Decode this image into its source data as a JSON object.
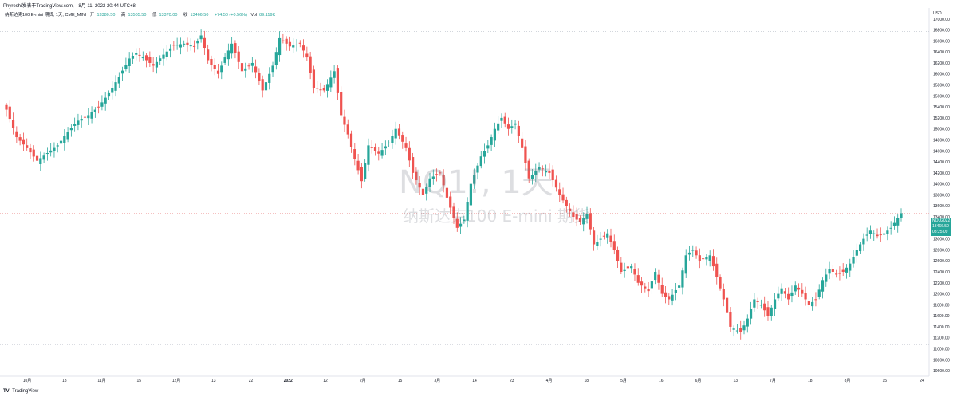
{
  "header": {
    "published_by": "Phyreshi发表于TradingView.com,",
    "date": "8月 11, 2022 20:44 UTC+8"
  },
  "legend": {
    "symbol": "纳斯达克100 E-mini 期货, 1天, CME_MINI",
    "open_label": "开",
    "open": "13380.50",
    "high_label": "高",
    "high": "13505.50",
    "low_label": "低",
    "low": "13370.00",
    "close_label": "收",
    "close": "13466.50",
    "change": "+74.50 (+0.56%)",
    "volume_label": "Vol",
    "volume": "89.119K"
  },
  "watermark": {
    "line1": "NQ1!, 1天",
    "line2": "纳斯达克100 E-mini 期货"
  },
  "price_tag": {
    "symbol": "NQU2022",
    "price": "13466.50",
    "countdown": "08:25:09",
    "color": "#26a69a"
  },
  "footer": {
    "logo": "TV",
    "brand": "TradingView"
  },
  "colors": {
    "up": "#26a69a",
    "down": "#ef5350"
  },
  "chart_data": {
    "type": "candlestick",
    "currency": "USD",
    "ylim": [
      10500,
      17200
    ],
    "y_ticks": [
      10600,
      10800,
      11000,
      11200,
      11400,
      11600,
      11800,
      12000,
      12200,
      12400,
      12600,
      12800,
      13000,
      13200,
      13400,
      13600,
      13800,
      14000,
      14200,
      14400,
      14600,
      14800,
      15000,
      15200,
      15400,
      15600,
      15800,
      16000,
      16200,
      16400,
      16600,
      16800,
      17000
    ],
    "x_ticks": [
      "10月",
      "18",
      "11月",
      "15",
      "12月",
      "13",
      "22",
      "2022",
      "12",
      "2月",
      "15",
      "3月",
      "14",
      "23",
      "4月",
      "18",
      "5月",
      "16",
      "6月",
      "13",
      "7月",
      "18",
      "8月",
      "15",
      "24"
    ],
    "reference_lines": [
      16770,
      13466.5,
      11070
    ],
    "checkpoints": [
      [
        0,
        15350
      ],
      [
        3,
        14850
      ],
      [
        6,
        14650
      ],
      [
        9,
        14420
      ],
      [
        12,
        14560
      ],
      [
        15,
        14700
      ],
      [
        18,
        14950
      ],
      [
        21,
        15150
      ],
      [
        24,
        15250
      ],
      [
        27,
        15400
      ],
      [
        30,
        15650
      ],
      [
        33,
        15950
      ],
      [
        36,
        16280
      ],
      [
        38,
        16380
      ],
      [
        40,
        16300
      ],
      [
        43,
        16150
      ],
      [
        46,
        16350
      ],
      [
        49,
        16520
      ],
      [
        52,
        16550
      ],
      [
        55,
        16500
      ],
      [
        57,
        16700
      ],
      [
        59,
        16250
      ],
      [
        62,
        16000
      ],
      [
        64,
        16300
      ],
      [
        66,
        16550
      ],
      [
        69,
        16050
      ],
      [
        72,
        16200
      ],
      [
        75,
        15700
      ],
      [
        78,
        16150
      ],
      [
        80,
        16650
      ],
      [
        83,
        16500
      ],
      [
        86,
        16550
      ],
      [
        88,
        16300
      ],
      [
        90,
        15750
      ],
      [
        93,
        15700
      ],
      [
        96,
        16050
      ],
      [
        98,
        15250
      ],
      [
        100,
        14900
      ],
      [
        102,
        14450
      ],
      [
        104,
        14050
      ],
      [
        106,
        14700
      ],
      [
        109,
        14550
      ],
      [
        112,
        14750
      ],
      [
        114,
        15000
      ],
      [
        117,
        14650
      ],
      [
        119,
        14200
      ],
      [
        122,
        13800
      ],
      [
        124,
        14100
      ],
      [
        127,
        14200
      ],
      [
        129,
        13750
      ],
      [
        132,
        13200
      ],
      [
        134,
        13350
      ],
      [
        136,
        14000
      ],
      [
        139,
        14500
      ],
      [
        141,
        14700
      ],
      [
        143,
        15000
      ],
      [
        145,
        15200
      ],
      [
        147,
        15000
      ],
      [
        149,
        15100
      ],
      [
        151,
        14650
      ],
      [
        153,
        14100
      ],
      [
        156,
        14300
      ],
      [
        159,
        14200
      ],
      [
        162,
        13800
      ],
      [
        164,
        13600
      ],
      [
        166,
        13400
      ],
      [
        168,
        13300
      ],
      [
        170,
        13450
      ],
      [
        172,
        12900
      ],
      [
        174,
        13000
      ],
      [
        176,
        13100
      ],
      [
        178,
        12800
      ],
      [
        180,
        12400
      ],
      [
        183,
        12500
      ],
      [
        185,
        12200
      ],
      [
        188,
        12050
      ],
      [
        190,
        12400
      ],
      [
        192,
        12000
      ],
      [
        194,
        11900
      ],
      [
        197,
        12150
      ],
      [
        199,
        12700
      ],
      [
        201,
        12800
      ],
      [
        203,
        12600
      ],
      [
        206,
        12700
      ],
      [
        208,
        12300
      ],
      [
        210,
        11900
      ],
      [
        212,
        11400
      ],
      [
        215,
        11300
      ],
      [
        217,
        11550
      ],
      [
        219,
        11900
      ],
      [
        221,
        11800
      ],
      [
        223,
        11600
      ],
      [
        225,
        11900
      ],
      [
        227,
        12100
      ],
      [
        229,
        11900
      ],
      [
        231,
        12150
      ],
      [
        233,
        12000
      ],
      [
        235,
        11800
      ],
      [
        237,
        11900
      ],
      [
        239,
        12250
      ],
      [
        241,
        12450
      ],
      [
        243,
        12350
      ],
      [
        245,
        12400
      ],
      [
        247,
        12550
      ],
      [
        249,
        12800
      ],
      [
        251,
        13000
      ],
      [
        253,
        13150
      ],
      [
        255,
        13050
      ],
      [
        257,
        13100
      ],
      [
        259,
        13200
      ],
      [
        261,
        13380
      ],
      [
        262,
        13466.5
      ]
    ]
  }
}
